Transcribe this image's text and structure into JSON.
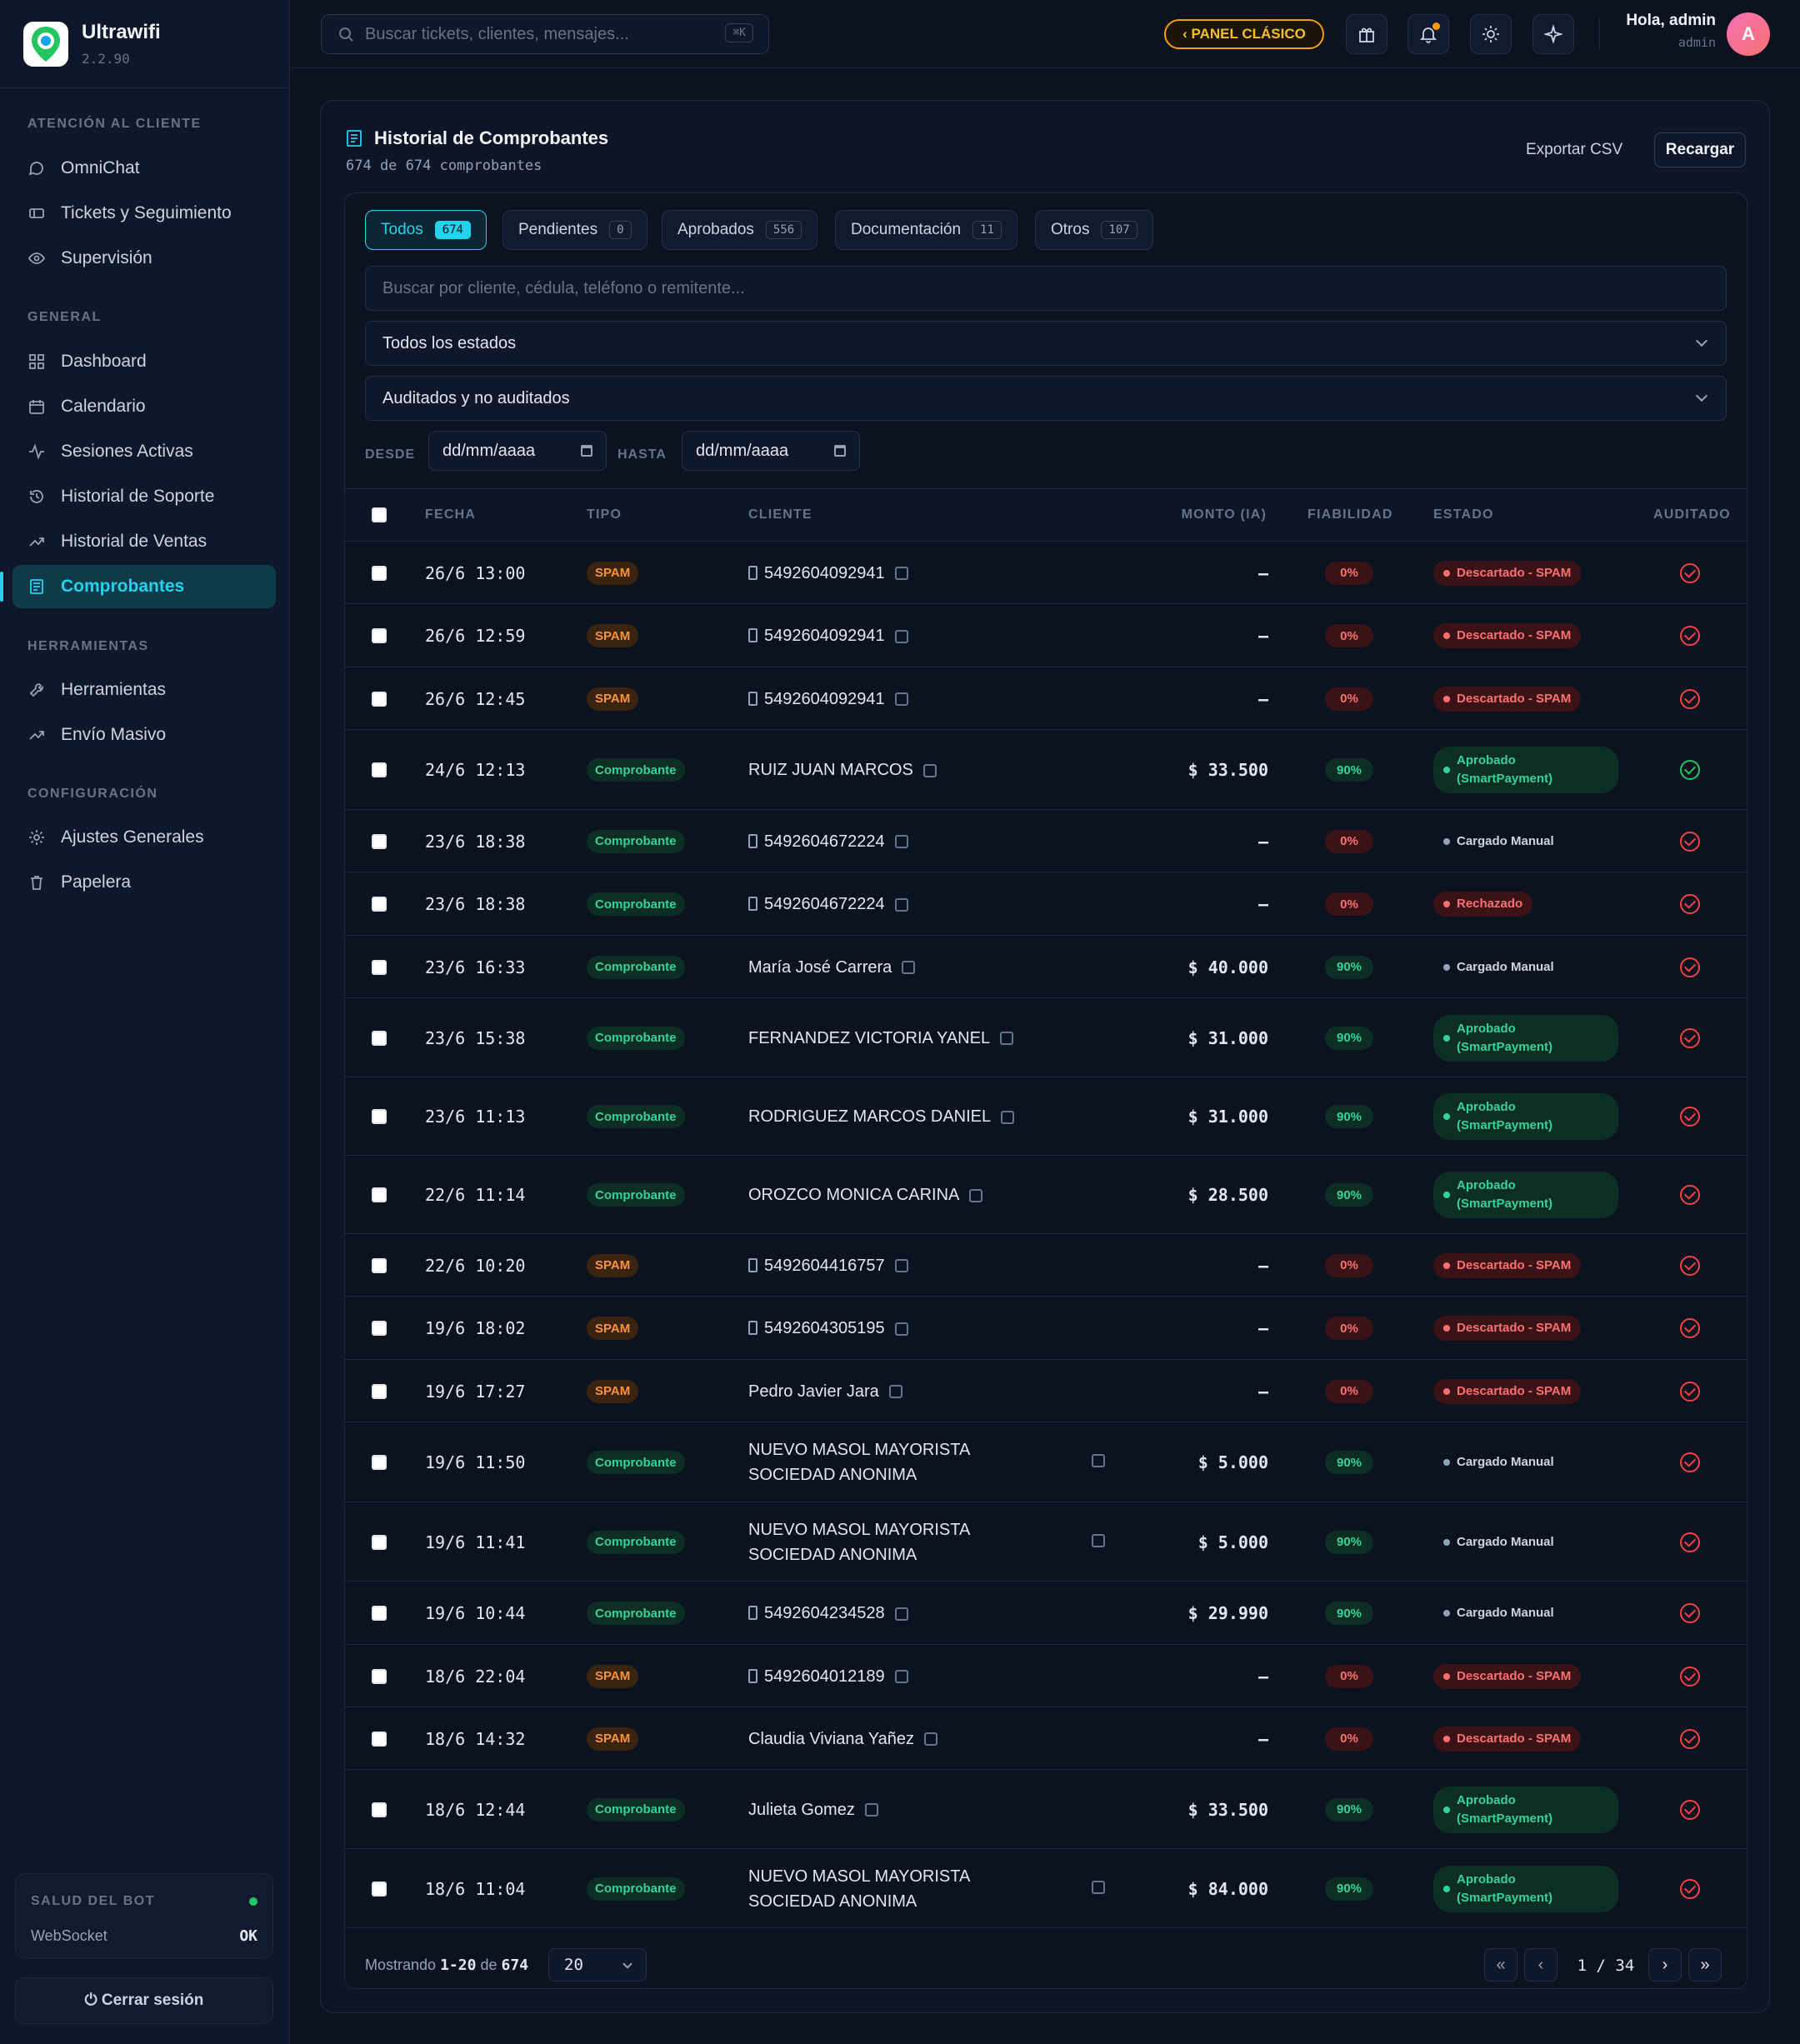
{
  "app": {
    "name": "Ultrawifi",
    "version": "2.2.90"
  },
  "sidebar": {
    "sections": [
      {
        "title": "ATENCIÓN AL CLIENTE",
        "items": [
          {
            "label": "OmniChat",
            "icon": "chat-icon"
          },
          {
            "label": "Tickets y Seguimiento",
            "icon": "ticket-icon"
          },
          {
            "label": "Supervisión",
            "icon": "eye-icon"
          }
        ]
      },
      {
        "title": "GENERAL",
        "items": [
          {
            "label": "Dashboard",
            "icon": "grid-icon"
          },
          {
            "label": "Calendario",
            "icon": "calendar-icon"
          },
          {
            "label": "Sesiones Activas",
            "icon": "activity-icon"
          },
          {
            "label": "Historial de Soporte",
            "icon": "history-icon"
          },
          {
            "label": "Historial de Ventas",
            "icon": "trend-icon"
          },
          {
            "label": "Comprobantes",
            "icon": "receipt-icon"
          }
        ]
      },
      {
        "title": "HERRAMIENTAS",
        "items": [
          {
            "label": "Herramientas",
            "icon": "wrench-icon"
          },
          {
            "label": "Envío Masivo",
            "icon": "trend-icon"
          }
        ]
      },
      {
        "title": "CONFIGURACIÓN",
        "items": [
          {
            "label": "Ajustes Generales",
            "icon": "gear-icon"
          },
          {
            "label": "Papelera",
            "icon": "trash-icon"
          }
        ]
      }
    ],
    "health": {
      "title": "SALUD DEL BOT",
      "key": "WebSocket",
      "value": "OK"
    },
    "logout": "⏻ Cerrar sesión"
  },
  "topbar": {
    "search_placeholder": "Buscar tickets, clientes, mensajes...",
    "shortcut": "⌘K",
    "classic": "‹ PANEL CLÁSICO",
    "greeting": "Hola, admin",
    "role": "admin",
    "avatar": "A"
  },
  "page": {
    "title": "Historial de Comprobantes",
    "subtitle": "674 de 674 comprobantes",
    "export": "Exportar CSV",
    "reload": "Recargar",
    "tabs": [
      {
        "label": "Todos",
        "count": "674"
      },
      {
        "label": "Pendientes",
        "count": "0"
      },
      {
        "label": "Aprobados",
        "count": "556"
      },
      {
        "label": "Documentación",
        "count": "11"
      },
      {
        "label": "Otros",
        "count": "107"
      }
    ],
    "filter_placeholder": "Buscar por cliente, cédula, teléfono o remitente...",
    "status_select": "Todos los estados",
    "audit_select": "Auditados y no auditados",
    "desde": "DESDE",
    "hasta": "HASTA",
    "date_ph": "dd/mm/aaaa"
  },
  "table": {
    "headers": [
      "FECHA",
      "TIPO",
      "CLIENTE",
      "MONTO (IA)",
      "FIABILIDAD",
      "ESTADO",
      "AUDITADO"
    ],
    "rows": [
      {
        "fecha": "26/6 13:00",
        "tipo": "SPAM",
        "cliente": "5492604092941",
        "phone": true,
        "monto": "—",
        "fiab": "0%",
        "estado": "Descartado - SPAM",
        "audit": "red"
      },
      {
        "fecha": "26/6 12:59",
        "tipo": "SPAM",
        "cliente": "5492604092941",
        "phone": true,
        "monto": "—",
        "fiab": "0%",
        "estado": "Descartado - SPAM",
        "audit": "red"
      },
      {
        "fecha": "26/6 12:45",
        "tipo": "SPAM",
        "cliente": "5492604092941",
        "phone": true,
        "monto": "—",
        "fiab": "0%",
        "estado": "Descartado - SPAM",
        "audit": "red"
      },
      {
        "fecha": "24/6 12:13",
        "tipo": "Comprobante",
        "cliente": "RUIZ JUAN MARCOS",
        "phone": false,
        "monto": "$ 33.500",
        "fiab": "90%",
        "estado": "Aprobado (SmartPayment)",
        "audit": "green"
      },
      {
        "fecha": "23/6 18:38",
        "tipo": "Comprobante",
        "cliente": "5492604672224",
        "phone": true,
        "monto": "—",
        "fiab": "0%",
        "estado": "Cargado Manual",
        "audit": "red"
      },
      {
        "fecha": "23/6 18:38",
        "tipo": "Comprobante",
        "cliente": "5492604672224",
        "phone": true,
        "monto": "—",
        "fiab": "0%",
        "estado": "Rechazado",
        "audit": "red"
      },
      {
        "fecha": "23/6 16:33",
        "tipo": "Comprobante",
        "cliente": "María José Carrera",
        "phone": false,
        "monto": "$ 40.000",
        "fiab": "90%",
        "estado": "Cargado Manual",
        "audit": "red"
      },
      {
        "fecha": "23/6 15:38",
        "tipo": "Comprobante",
        "cliente": "FERNANDEZ VICTORIA YANEL",
        "phone": false,
        "monto": "$ 31.000",
        "fiab": "90%",
        "estado": "Aprobado (SmartPayment)",
        "audit": "red"
      },
      {
        "fecha": "23/6 11:13",
        "tipo": "Comprobante",
        "cliente": "RODRIGUEZ MARCOS DANIEL",
        "phone": false,
        "monto": "$ 31.000",
        "fiab": "90%",
        "estado": "Aprobado (SmartPayment)",
        "audit": "red"
      },
      {
        "fecha": "22/6 11:14",
        "tipo": "Comprobante",
        "cliente": "OROZCO MONICA CARINA",
        "phone": false,
        "monto": "$ 28.500",
        "fiab": "90%",
        "estado": "Aprobado (SmartPayment)",
        "audit": "red"
      },
      {
        "fecha": "22/6 10:20",
        "tipo": "SPAM",
        "cliente": "5492604416757",
        "phone": true,
        "monto": "—",
        "fiab": "0%",
        "estado": "Descartado - SPAM",
        "audit": "red"
      },
      {
        "fecha": "19/6 18:02",
        "tipo": "SPAM",
        "cliente": "5492604305195",
        "phone": true,
        "monto": "—",
        "fiab": "0%",
        "estado": "Descartado - SPAM",
        "audit": "red"
      },
      {
        "fecha": "19/6 17:27",
        "tipo": "SPAM",
        "cliente": "Pedro Javier Jara",
        "phone": false,
        "monto": "—",
        "fiab": "0%",
        "estado": "Descartado - SPAM",
        "audit": "red"
      },
      {
        "fecha": "19/6 11:50",
        "tipo": "Comprobante",
        "cliente": "NUEVO MASOL MAYORISTA SOCIEDAD ANONIMA",
        "phone": false,
        "monto": "$ 5.000",
        "fiab": "90%",
        "estado": "Cargado Manual",
        "audit": "red"
      },
      {
        "fecha": "19/6 11:41",
        "tipo": "Comprobante",
        "cliente": "NUEVO MASOL MAYORISTA SOCIEDAD ANONIMA",
        "phone": false,
        "monto": "$ 5.000",
        "fiab": "90%",
        "estado": "Cargado Manual",
        "audit": "red"
      },
      {
        "fecha": "19/6 10:44",
        "tipo": "Comprobante",
        "cliente": "5492604234528",
        "phone": true,
        "monto": "$ 29.990",
        "fiab": "90%",
        "estado": "Cargado Manual",
        "audit": "red"
      },
      {
        "fecha": "18/6 22:04",
        "tipo": "SPAM",
        "cliente": "5492604012189",
        "phone": true,
        "monto": "—",
        "fiab": "0%",
        "estado": "Descartado - SPAM",
        "audit": "red"
      },
      {
        "fecha": "18/6 14:32",
        "tipo": "SPAM",
        "cliente": "Claudia Viviana Yañez",
        "phone": false,
        "monto": "—",
        "fiab": "0%",
        "estado": "Descartado - SPAM",
        "audit": "red"
      },
      {
        "fecha": "18/6 12:44",
        "tipo": "Comprobante",
        "cliente": "Julieta Gomez",
        "phone": false,
        "monto": "$ 33.500",
        "fiab": "90%",
        "estado": "Aprobado (SmartPayment)",
        "audit": "red"
      },
      {
        "fecha": "18/6 11:04",
        "tipo": "Comprobante",
        "cliente": "NUEVO MASOL MAYORISTA SOCIEDAD ANONIMA",
        "phone": false,
        "monto": "$ 84.000",
        "fiab": "90%",
        "estado": "Aprobado (SmartPayment)",
        "audit": "red"
      }
    ]
  },
  "footer": {
    "showing_prefix": "Mostrando",
    "range": "1-20",
    "of": "de",
    "total": "674",
    "page_size": "20",
    "page": "1 / 34",
    "first": "«",
    "prev": "‹",
    "next": "›",
    "last": "»"
  }
}
